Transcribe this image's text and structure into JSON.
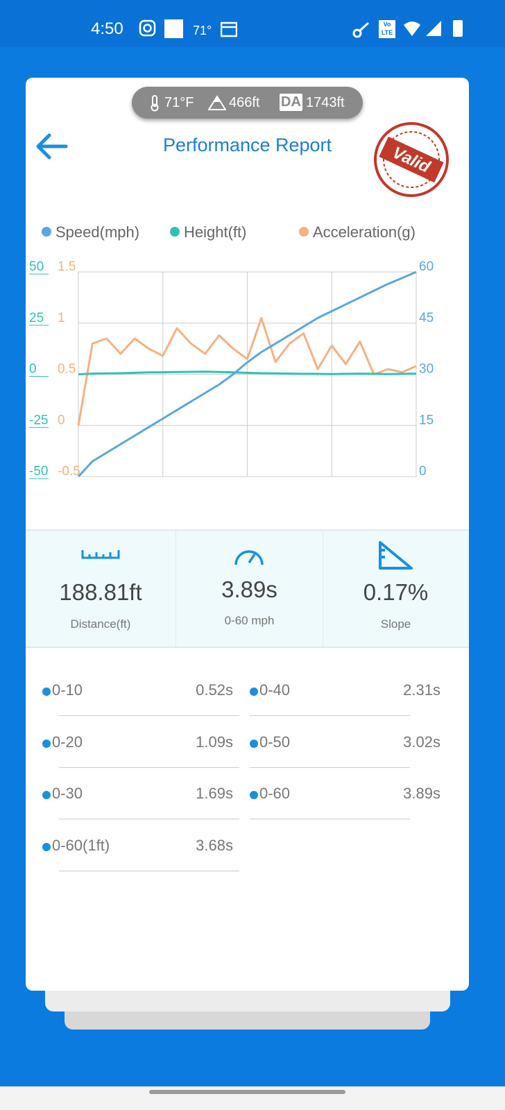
{
  "status_bar": {
    "time": "4:50",
    "temperature": "71°",
    "network": "Vo LTE"
  },
  "conditions": {
    "temperature": "71°F",
    "altitude": "466ft",
    "da_badge": "DA",
    "density_altitude": "1743ft"
  },
  "header": {
    "title": "Performance Report",
    "stamp": "Valid"
  },
  "chart_data": {
    "type": "line",
    "series": [
      {
        "name": "Speed(mph)",
        "color": "#5ba6dd",
        "axis": "y2",
        "values": [
          0,
          4.5,
          7,
          9.5,
          12,
          14.5,
          17,
          19.5,
          22,
          24.5,
          27,
          30,
          33.5,
          36.5,
          39,
          41.5,
          44,
          46.5,
          48.5,
          50.5,
          52.5,
          54.5,
          56.5,
          58.2,
          60
        ]
      },
      {
        "name": "Height(ft)",
        "color": "#2ec2b4",
        "axis": "y",
        "values": [
          0,
          0.3,
          0.4,
          0.5,
          0.7,
          0.9,
          1,
          1.1,
          1.2,
          1.3,
          1.1,
          0.9,
          0.7,
          0.5,
          0.4,
          0.3,
          0.2,
          0.2,
          0.1,
          0.2,
          0.3,
          0.2,
          0.1,
          0.2,
          0.3
        ]
      },
      {
        "name": "Acceleration(g)",
        "color": "#f4b183",
        "axis": "y3",
        "values": [
          0,
          0.8,
          0.85,
          0.7,
          0.85,
          0.75,
          0.68,
          0.95,
          0.8,
          0.7,
          0.88,
          0.75,
          0.65,
          1.05,
          0.62,
          0.8,
          0.9,
          0.55,
          0.78,
          0.6,
          0.82,
          0.5,
          0.55,
          0.52,
          0.58
        ]
      }
    ],
    "ylim": [
      -50,
      50
    ],
    "yticks": [
      -50,
      -25,
      0,
      25,
      50
    ],
    "ycolor": "#2ec2b4",
    "y2lim": [
      0,
      60
    ],
    "y2ticks": [
      0,
      15,
      30,
      45,
      60
    ],
    "y2color": "#5ba6dd",
    "y3lim": [
      -0.5,
      1.5
    ],
    "y3ticks": [
      -0.5,
      0,
      0.5,
      1,
      1.5
    ],
    "y3color": "#f4b183",
    "grid": true
  },
  "stats": [
    {
      "value": "188.81ft",
      "label": "Distance(ft)"
    },
    {
      "value": "3.89s",
      "label": "0-60 mph"
    },
    {
      "value": "0.17%",
      "label": "Slope"
    }
  ],
  "splits": {
    "left": [
      {
        "label": "0-10",
        "time": "0.52s"
      },
      {
        "label": "0-20",
        "time": "1.09s"
      },
      {
        "label": "0-30",
        "time": "1.69s"
      },
      {
        "label": "0-60(1ft)",
        "time": "3.68s"
      }
    ],
    "right": [
      {
        "label": "0-40",
        "time": "2.31s"
      },
      {
        "label": "0-50",
        "time": "3.02s"
      },
      {
        "label": "0-60",
        "time": "3.89s"
      }
    ]
  }
}
